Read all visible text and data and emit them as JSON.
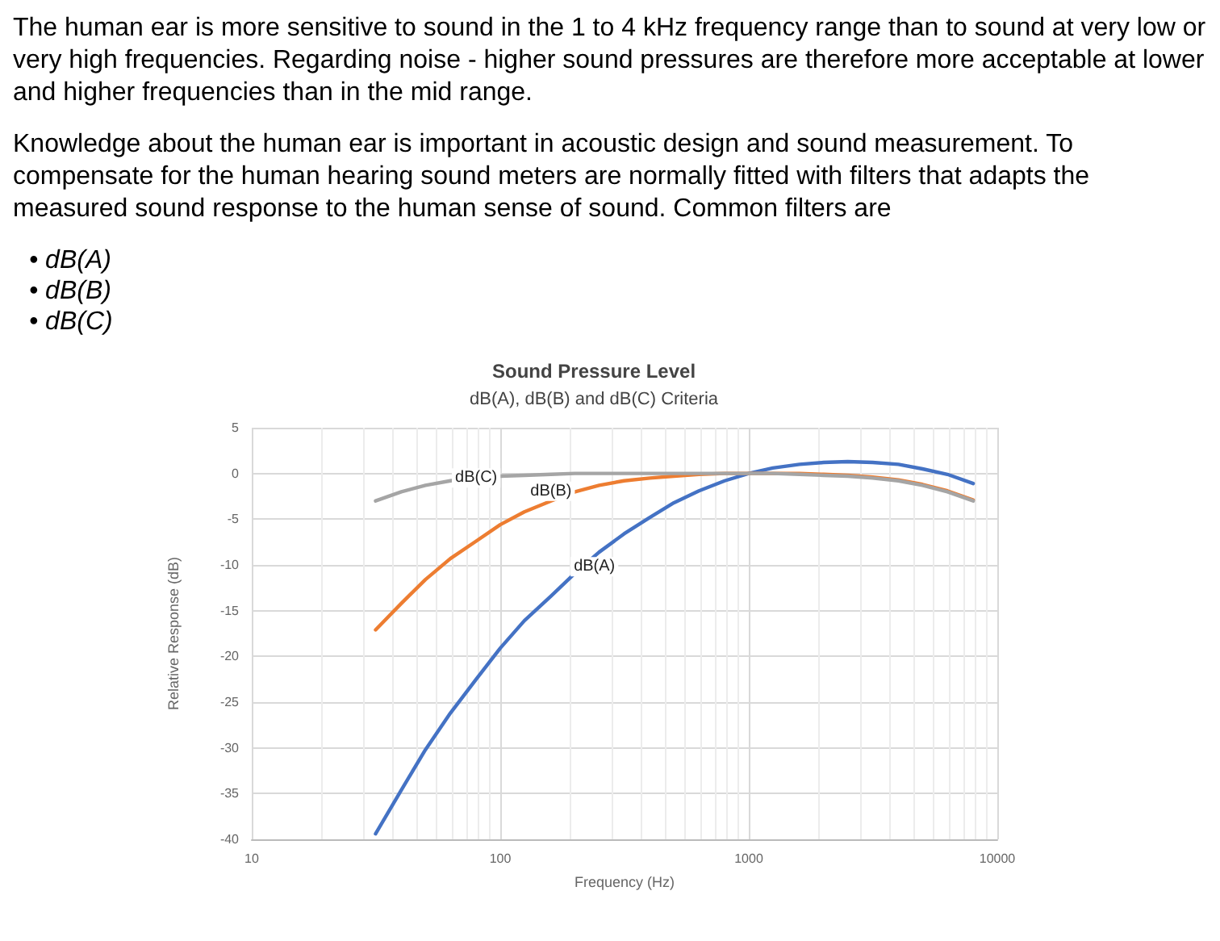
{
  "chart_data": {
    "type": "line",
    "title": "Sound Pressure Level",
    "subtitle": "dB(A), dB(B) and dB(C) Criteria",
    "xlabel": "Frequency (Hz)",
    "ylabel": "Relative Response (dB)",
    "annotations": [
      "The human ear is more sensitive to sound in the 1 to 4 kHz frequency range than to sound at very low or very high frequencies. Regarding noise - higher sound pressures are therefore more acceptable at lower and higher frequencies than in the mid range.",
      "Knowledge about the human ear is important in acoustic design and sound measurement. To compensate for the human hearing sound meters are normally fitted with filters that adapts the measured sound response to the human sense of sound. Common filters are",
      "• dB(A)",
      "• dB(B)",
      "• dB(C)"
    ],
    "x": [
      31.5,
      40,
      50,
      63,
      80,
      100,
      125,
      160,
      200,
      250,
      315,
      400,
      500,
      630,
      800,
      1000,
      1250,
      1600,
      2000,
      2500,
      3150,
      4000,
      5000,
      6300,
      8000
    ],
    "series": [
      {
        "name": "dB(A)",
        "color": "#4472c4",
        "values": [
          -39.4,
          -34.6,
          -30.2,
          -26.2,
          -22.5,
          -19.1,
          -16.1,
          -13.4,
          -10.9,
          -8.6,
          -6.6,
          -4.8,
          -3.2,
          -1.9,
          -0.8,
          0,
          0.6,
          1.0,
          1.2,
          1.3,
          1.2,
          1.0,
          0.5,
          -0.1,
          -1.1
        ]
      },
      {
        "name": "dB(B)",
        "color": "#ed7d31",
        "values": [
          -17.1,
          -14.2,
          -11.6,
          -9.3,
          -7.4,
          -5.6,
          -4.2,
          -3.0,
          -2.0,
          -1.3,
          -0.8,
          -0.5,
          -0.3,
          -0.1,
          0,
          0,
          0,
          0,
          -0.1,
          -0.2,
          -0.4,
          -0.7,
          -1.2,
          -1.9,
          -2.9
        ]
      },
      {
        "name": "dB(C)",
        "color": "#a5a5a5",
        "values": [
          -3.0,
          -2.0,
          -1.3,
          -0.8,
          -0.5,
          -0.3,
          -0.2,
          -0.1,
          0,
          0,
          0,
          0,
          0,
          0,
          0,
          0,
          0,
          -0.1,
          -0.2,
          -0.3,
          -0.5,
          -0.8,
          -1.3,
          -2.0,
          -3.0
        ]
      }
    ],
    "xlim": [
      10,
      10000
    ],
    "xticks": [
      10,
      100,
      1000,
      10000
    ],
    "ylim": [
      -40,
      5
    ],
    "yticks": [
      -40,
      -35,
      -30,
      -25,
      -20,
      -15,
      -10,
      -5,
      0,
      5
    ],
    "log": "x",
    "grid": true,
    "legend": false,
    "marker": "none",
    "line_style": "solid"
  }
}
